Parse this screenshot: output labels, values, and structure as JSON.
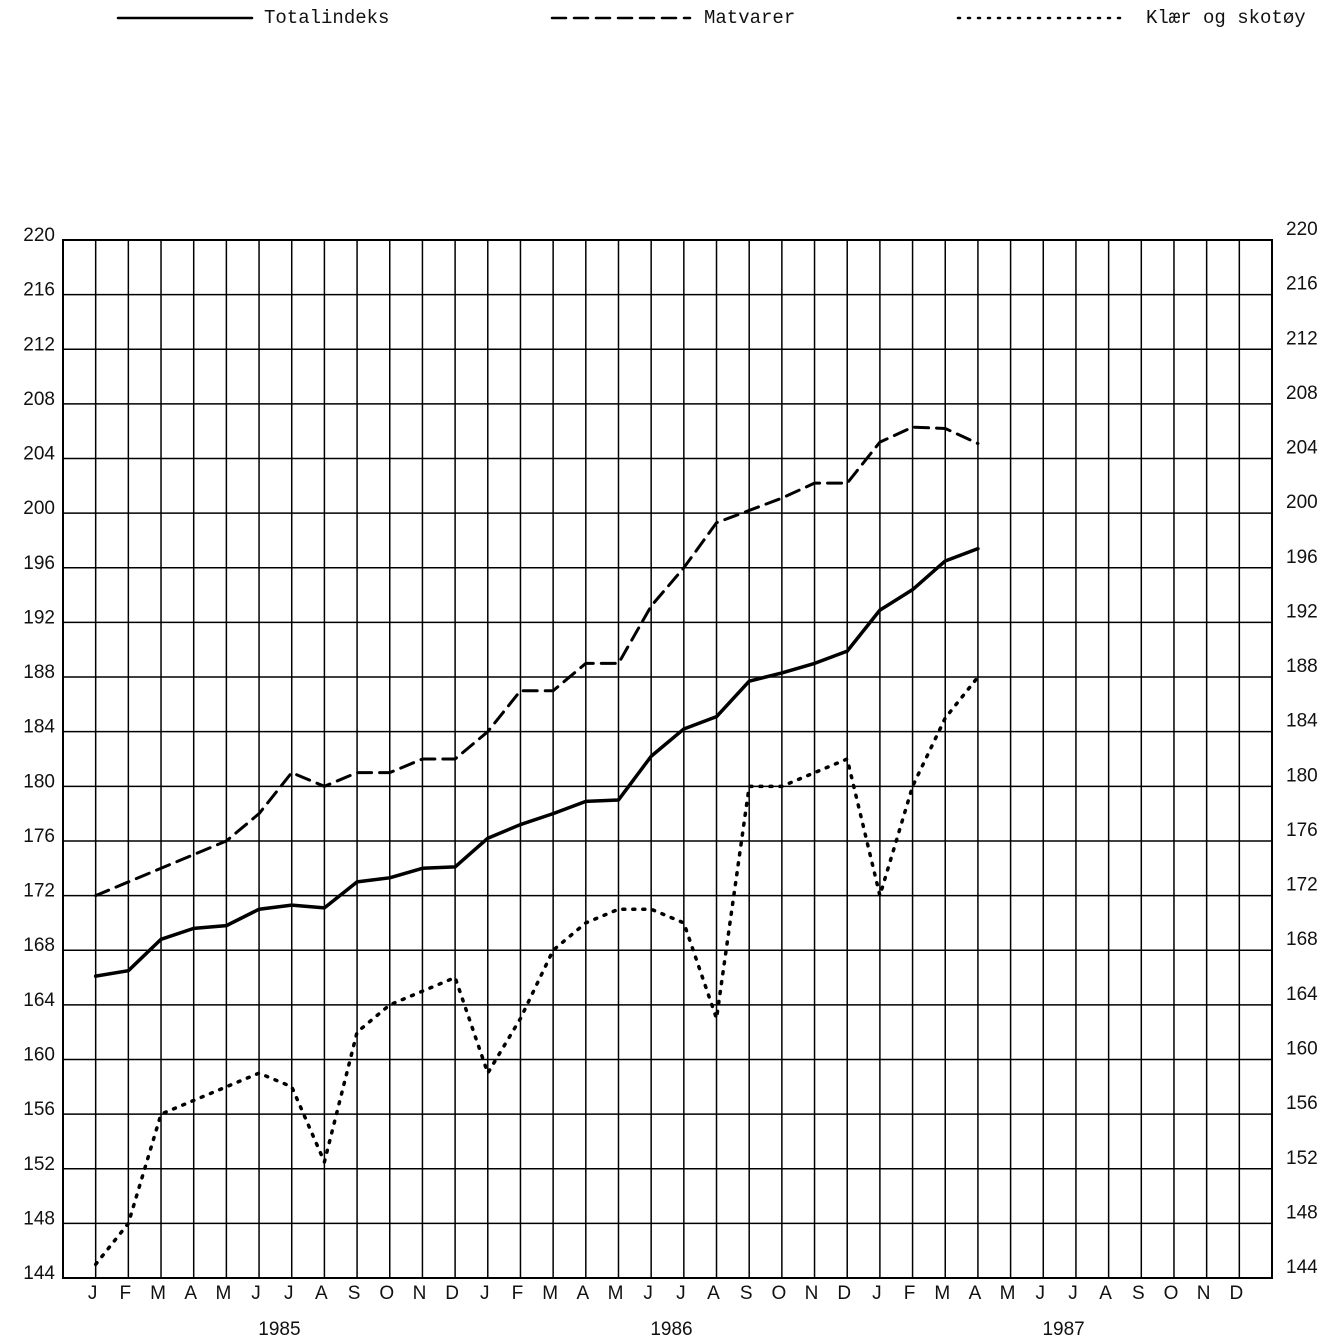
{
  "chart_data": {
    "type": "line",
    "categories": [
      "J",
      "F",
      "M",
      "A",
      "M",
      "J",
      "J",
      "A",
      "S",
      "O",
      "N",
      "D",
      "J",
      "F",
      "M",
      "A",
      "M",
      "J",
      "J",
      "A",
      "S",
      "O",
      "N",
      "D",
      "J",
      "F",
      "M",
      "A",
      "M",
      "J",
      "J",
      "A",
      "S",
      "O",
      "N",
      "D"
    ],
    "groups": [
      "1985",
      "1986",
      "1987"
    ],
    "series": [
      {
        "name": "Totalindeks",
        "color": "#000000",
        "dash": "solid",
        "values": [
          166.1,
          166.5,
          168.8,
          169.6,
          169.8,
          171.0,
          171.3,
          171.1,
          173.0,
          173.3,
          174.0,
          174.1,
          176.2,
          177.2,
          178.0,
          178.9,
          179.0,
          182.2,
          184.2,
          185.1,
          187.7,
          188.3,
          189.0,
          189.9,
          192.9,
          194.4,
          196.5,
          197.4,
          null,
          null,
          null,
          null,
          null,
          null,
          null,
          null
        ]
      },
      {
        "name": "Matvarer",
        "color": "#000000",
        "dash": "dashed",
        "values": [
          172,
          173,
          174,
          175,
          176,
          178,
          181,
          180,
          181,
          181,
          182,
          182,
          184,
          187,
          187,
          189,
          189,
          193.2,
          196,
          199.3,
          200.2,
          201.1,
          202.2,
          202.2,
          205.2,
          206.3,
          206.2,
          205.1,
          null,
          null,
          null,
          null,
          null,
          null,
          null,
          null
        ]
      },
      {
        "name": "Klær og skotøy",
        "color": "#000000",
        "dash": "dotted",
        "values": [
          145,
          148,
          156,
          157,
          158,
          159,
          158,
          152.5,
          162,
          164,
          165,
          166,
          159,
          163,
          168,
          170,
          171,
          171,
          170,
          163,
          180,
          180,
          181,
          182,
          172,
          180,
          185,
          188,
          null,
          null,
          null,
          null,
          null,
          null,
          null,
          null
        ]
      }
    ],
    "ylim": [
      144,
      220
    ],
    "yticks": [
      144,
      148,
      152,
      156,
      160,
      164,
      168,
      172,
      176,
      180,
      184,
      188,
      192,
      196,
      200,
      204,
      208,
      212,
      216,
      220
    ],
    "grid": true,
    "legend": "top",
    "right_axis": true
  }
}
